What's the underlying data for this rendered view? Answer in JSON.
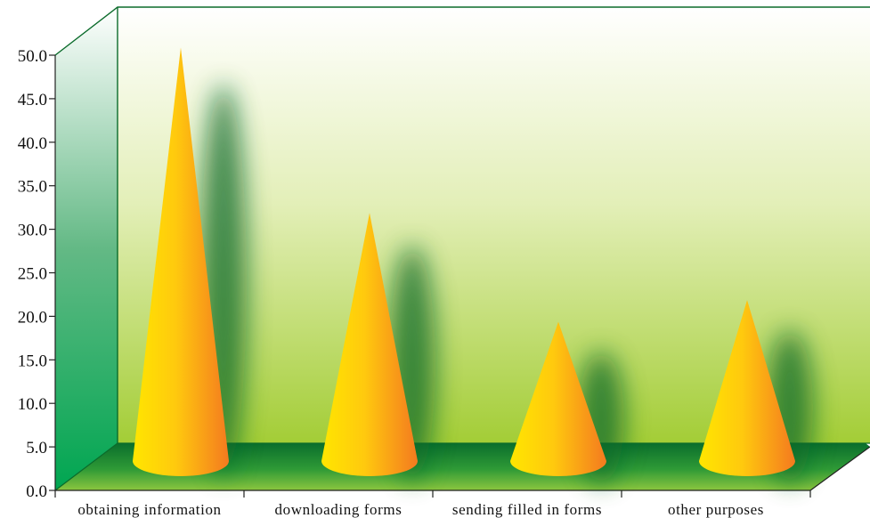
{
  "chart_data": {
    "type": "bar",
    "style": "3d-cone",
    "categories": [
      "obtaining information",
      "downloading forms",
      "sending filled in forms",
      "other purposes"
    ],
    "values": [
      47.5,
      28.5,
      16.0,
      18.5
    ],
    "title": "",
    "xlabel": "",
    "ylabel": "",
    "ylim": [
      0,
      50
    ],
    "ytick_step": 5,
    "ytick_labels": [
      "0.0",
      "5.0",
      "10.0",
      "15.0",
      "20.0",
      "25.0",
      "30.0",
      "35.0",
      "40.0",
      "45.0",
      "50.0"
    ],
    "grid": false,
    "legend": "none",
    "colors": {
      "cone_light": "#ffe600",
      "cone_dark": "#f47a1f",
      "floor": "#0a7a2e",
      "wall_top": "#ffffff",
      "wall_bottom": "#a6cf3a",
      "side_wall_top": "#ffffff",
      "side_wall_bottom": "#00a651",
      "frame": "#0b6b2b",
      "axis": "#222222"
    }
  }
}
